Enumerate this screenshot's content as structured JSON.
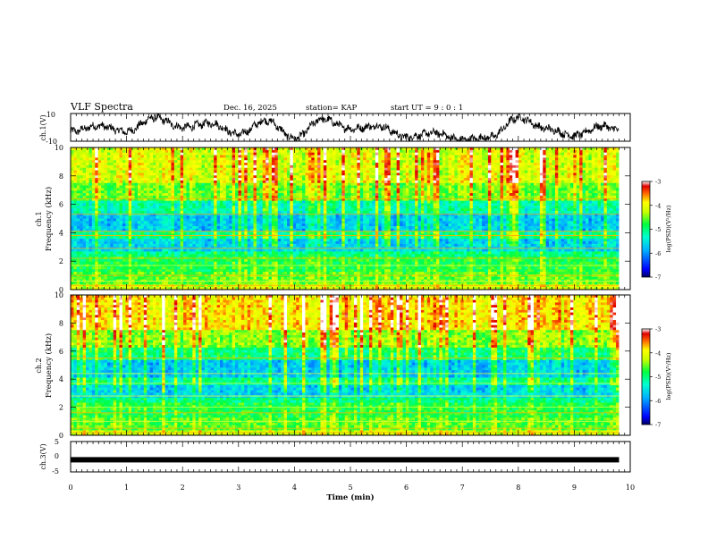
{
  "header": {
    "title": "VLF Spectra",
    "date": "Dec. 16, 2025",
    "station": "station= KAP",
    "start": "start  UT  =   9 : 0  : 1"
  },
  "chart_data": [
    {
      "type": "line",
      "panel": "ch1-waveform",
      "ylabel": "ch.1(V)",
      "yticks": [
        "10",
        "-10"
      ],
      "ylim": [
        -10,
        10
      ],
      "xlim": [
        0,
        10
      ],
      "data_end_min": 9.8,
      "x": [
        0,
        0.5,
        1.0,
        1.5,
        2.0,
        2.5,
        3.0,
        3.5,
        4.0,
        4.5,
        5.0,
        5.5,
        6.0,
        6.5,
        7.0,
        7.5,
        8.0,
        8.5,
        9.0,
        9.5,
        9.8
      ],
      "values": [
        -3,
        1,
        -3,
        7,
        0,
        3,
        -5,
        5,
        -8,
        6,
        -1,
        1,
        -7,
        -4,
        -9,
        -7,
        7,
        -1,
        -6,
        1,
        -2
      ]
    },
    {
      "type": "heatmap",
      "panel": "ch1-spectrogram",
      "ylabel": "ch.1\nFrequency (kHz)",
      "yticks": [
        "0",
        "2",
        "4",
        "6",
        "8",
        "10"
      ],
      "ylim": [
        0,
        10
      ],
      "xlim": [
        0,
        10
      ],
      "colorbar": {
        "label": "log(PSD)(V²/Hz)",
        "ticks": [
          "-3",
          "-4",
          "-5",
          "-6",
          "-7"
        ],
        "range": [
          -7,
          -3
        ]
      }
    },
    {
      "type": "heatmap",
      "panel": "ch2-spectrogram",
      "ylabel": "ch.2\nFrequency (kHz)",
      "yticks": [
        "0",
        "2",
        "4",
        "6",
        "8",
        "10"
      ],
      "ylim": [
        0,
        10
      ],
      "xlim": [
        0,
        10
      ],
      "colorbar": {
        "label": "log(PSD)(V²/Hz)",
        "ticks": [
          "-3",
          "-4",
          "-5",
          "-6",
          "-7"
        ],
        "range": [
          -7,
          -3
        ]
      }
    },
    {
      "type": "line",
      "panel": "ch3-waveform",
      "ylabel": "ch.3(V)",
      "yticks": [
        "5",
        "0",
        "-5"
      ],
      "ylim": [
        -5,
        5
      ],
      "xlim": [
        0,
        10
      ],
      "data_end_min": 9.8,
      "x": [
        0,
        9.8
      ],
      "values": [
        -1,
        -1
      ]
    }
  ],
  "xaxis": {
    "label": "Time  (min)",
    "ticks": [
      "0",
      "1",
      "2",
      "3",
      "4",
      "5",
      "6",
      "7",
      "8",
      "9",
      "10"
    ]
  },
  "colors": {
    "ink": "#000000",
    "colormap": [
      "#1a00ff",
      "#0050ff",
      "#00a0ff",
      "#00e8e0",
      "#00ff60",
      "#a0ff00",
      "#ffff00",
      "#ffb000",
      "#ff4000",
      "#e00000",
      "#ffffff"
    ]
  }
}
